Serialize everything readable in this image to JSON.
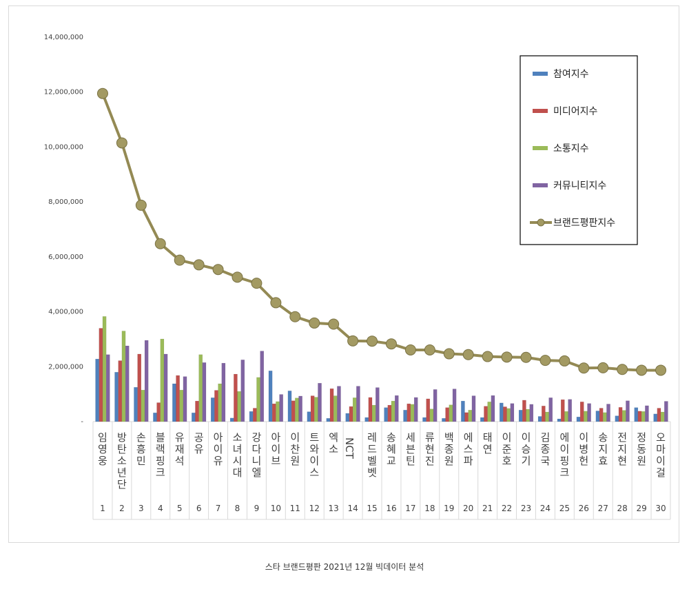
{
  "caption": "스타 브랜드평판  2021년 12월 빅데이터 분석",
  "chart_data": {
    "type": "bar",
    "ylim": [
      0,
      14000000
    ],
    "y_ticks": [
      {
        "value": 0,
        "label": "-"
      },
      {
        "value": 2000000,
        "label": "2,000,000"
      },
      {
        "value": 4000000,
        "label": "4,000,000"
      },
      {
        "value": 6000000,
        "label": "6,000,000"
      },
      {
        "value": 8000000,
        "label": "8,000,000"
      },
      {
        "value": 10000000,
        "label": "10,000,000"
      },
      {
        "value": 12000000,
        "label": "12,000,000"
      },
      {
        "value": 14000000,
        "label": "14,000,000"
      }
    ],
    "grid": false,
    "legend_position": "top-right",
    "ranks": [
      "1",
      "2",
      "3",
      "4",
      "5",
      "6",
      "7",
      "8",
      "9",
      "10",
      "11",
      "12",
      "13",
      "14",
      "15",
      "16",
      "17",
      "18",
      "19",
      "20",
      "21",
      "22",
      "23",
      "24",
      "25",
      "26",
      "27",
      "28",
      "29",
      "30"
    ],
    "categories": [
      "임영웅",
      "방탄소년단",
      "손흥민",
      "블랙핑크",
      "유재석",
      "공유",
      "아이유",
      "소녀시대",
      "강다니엘",
      "아이브",
      "이찬원",
      "트와이스",
      "엑소",
      "NCT",
      "레드벨벳",
      "송혜교",
      "세븐틴",
      "류현진",
      "백종원",
      "에스파",
      "태연",
      "이준호",
      "이승기",
      "김종국",
      "에이핑크",
      "이병헌",
      "송지효",
      "전지현",
      "정동원",
      "오마이걸"
    ],
    "series": [
      {
        "name": "참여지수",
        "kind": "bar",
        "color": "#4f81bd",
        "values": [
          2280000,
          1800000,
          1250000,
          320000,
          1380000,
          320000,
          870000,
          130000,
          370000,
          1850000,
          1120000,
          360000,
          120000,
          300000,
          150000,
          510000,
          420000,
          150000,
          120000,
          750000,
          150000,
          680000,
          420000,
          190000,
          100000,
          170000,
          390000,
          210000,
          510000,
          280000
        ]
      },
      {
        "name": "미디어지수",
        "kind": "bar",
        "color": "#c0504d",
        "values": [
          3400000,
          2220000,
          2460000,
          690000,
          1680000,
          750000,
          1140000,
          1730000,
          490000,
          650000,
          760000,
          940000,
          1200000,
          550000,
          880000,
          600000,
          650000,
          830000,
          510000,
          330000,
          560000,
          540000,
          780000,
          570000,
          800000,
          720000,
          490000,
          520000,
          380000,
          490000
        ]
      },
      {
        "name": "소통지수",
        "kind": "bar",
        "color": "#9bbb59",
        "values": [
          3830000,
          3300000,
          1150000,
          3010000,
          1150000,
          2440000,
          1380000,
          1100000,
          1610000,
          730000,
          860000,
          890000,
          940000,
          870000,
          600000,
          750000,
          630000,
          460000,
          610000,
          420000,
          720000,
          480000,
          450000,
          350000,
          370000,
          380000,
          330000,
          410000,
          370000,
          350000
        ]
      },
      {
        "name": "커뮤니티지수",
        "kind": "bar",
        "color": "#8064a2",
        "values": [
          2440000,
          2760000,
          2960000,
          2460000,
          1640000,
          2150000,
          2130000,
          2250000,
          2570000,
          990000,
          930000,
          1400000,
          1290000,
          1290000,
          1240000,
          950000,
          880000,
          1170000,
          1190000,
          940000,
          950000,
          660000,
          630000,
          870000,
          810000,
          660000,
          640000,
          760000,
          580000,
          740000
        ]
      },
      {
        "name": "브랜드평판지수",
        "kind": "line",
        "color": "#948a54",
        "values": [
          11950000,
          10150000,
          7880000,
          6480000,
          5880000,
          5710000,
          5540000,
          5260000,
          5040000,
          4330000,
          3820000,
          3590000,
          3550000,
          2940000,
          2930000,
          2830000,
          2610000,
          2610000,
          2470000,
          2440000,
          2370000,
          2350000,
          2340000,
          2230000,
          2210000,
          1950000,
          1960000,
          1900000,
          1870000,
          1870000
        ]
      }
    ]
  }
}
